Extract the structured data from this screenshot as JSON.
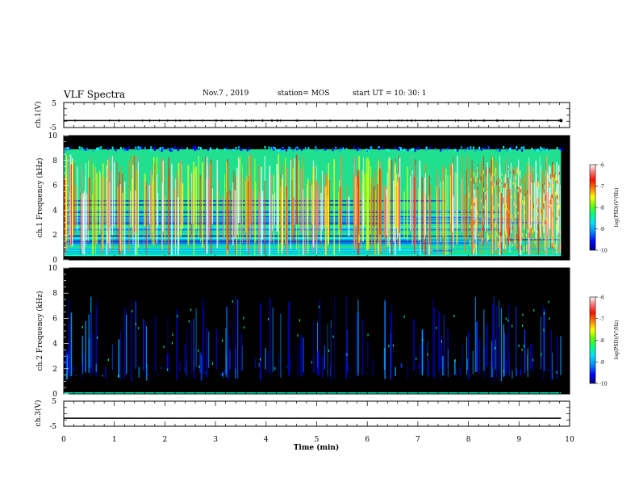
{
  "header": {
    "title": "VLF Spectra",
    "date": "Nov.7 , 2019",
    "station": "station= MOS",
    "start_ut": "start UT = 10: 30: 1"
  },
  "colors": {
    "background": "#000000",
    "axis": "#000000",
    "colormap": [
      "#000080",
      "#0000ff",
      "#0080ff",
      "#00e0ff",
      "#00ff80",
      "#40ff00",
      "#c0ff00",
      "#ffff00",
      "#ff8000",
      "#ff2000",
      "#ff8080",
      "#ffffff"
    ]
  },
  "chart_data": [
    {
      "type": "line",
      "ylabel": "ch.1(V)",
      "ylim": [
        -5,
        5
      ],
      "yticks": [
        "5",
        "-5"
      ],
      "x": [
        0,
        10
      ],
      "series": [
        {
          "values": [
            -2.2,
            -2.2
          ]
        }
      ]
    },
    {
      "type": "heatmap",
      "ylabel": "ch.1 Frequency (kHz)",
      "ylim": [
        0,
        10
      ],
      "yticks": [
        "0",
        "2",
        "4",
        "6",
        "8",
        "10"
      ],
      "xlim": [
        0,
        10
      ],
      "data_end_min": 9.83,
      "upper_cutoff_khz": 8.9,
      "colorbar": {
        "label": "log(PSD)(V²/Hz)",
        "ticks": [
          "-6",
          "-7",
          "-8",
          "-9",
          "-10"
        ],
        "range": [
          -10,
          -6
        ]
      }
    },
    {
      "type": "heatmap",
      "ylabel": "ch.2 Frequency (kHz)",
      "ylim": [
        0,
        10
      ],
      "yticks": [
        "0",
        "2",
        "4",
        "6",
        "8",
        "10"
      ],
      "xlim": [
        0,
        10
      ],
      "data_end_min": 9.83,
      "colorbar": {
        "label": "log(PSD)(V²/Hz)",
        "ticks": [
          "-6",
          "-7",
          "-8",
          "-9",
          "-10"
        ],
        "range": [
          -10,
          -6
        ]
      }
    },
    {
      "type": "line",
      "ylabel": "ch.3(V)",
      "ylim": [
        -5,
        5
      ],
      "yticks": [
        "5",
        "-5"
      ],
      "x": [
        0,
        10
      ],
      "series": [
        {
          "values": [
            -1.8,
            -1.8
          ]
        }
      ]
    }
  ],
  "xaxis": {
    "label": "Time (min)",
    "ticks": [
      "0",
      "1",
      "2",
      "3",
      "4",
      "5",
      "6",
      "7",
      "8",
      "9",
      "10"
    ],
    "range": [
      0,
      10
    ]
  }
}
